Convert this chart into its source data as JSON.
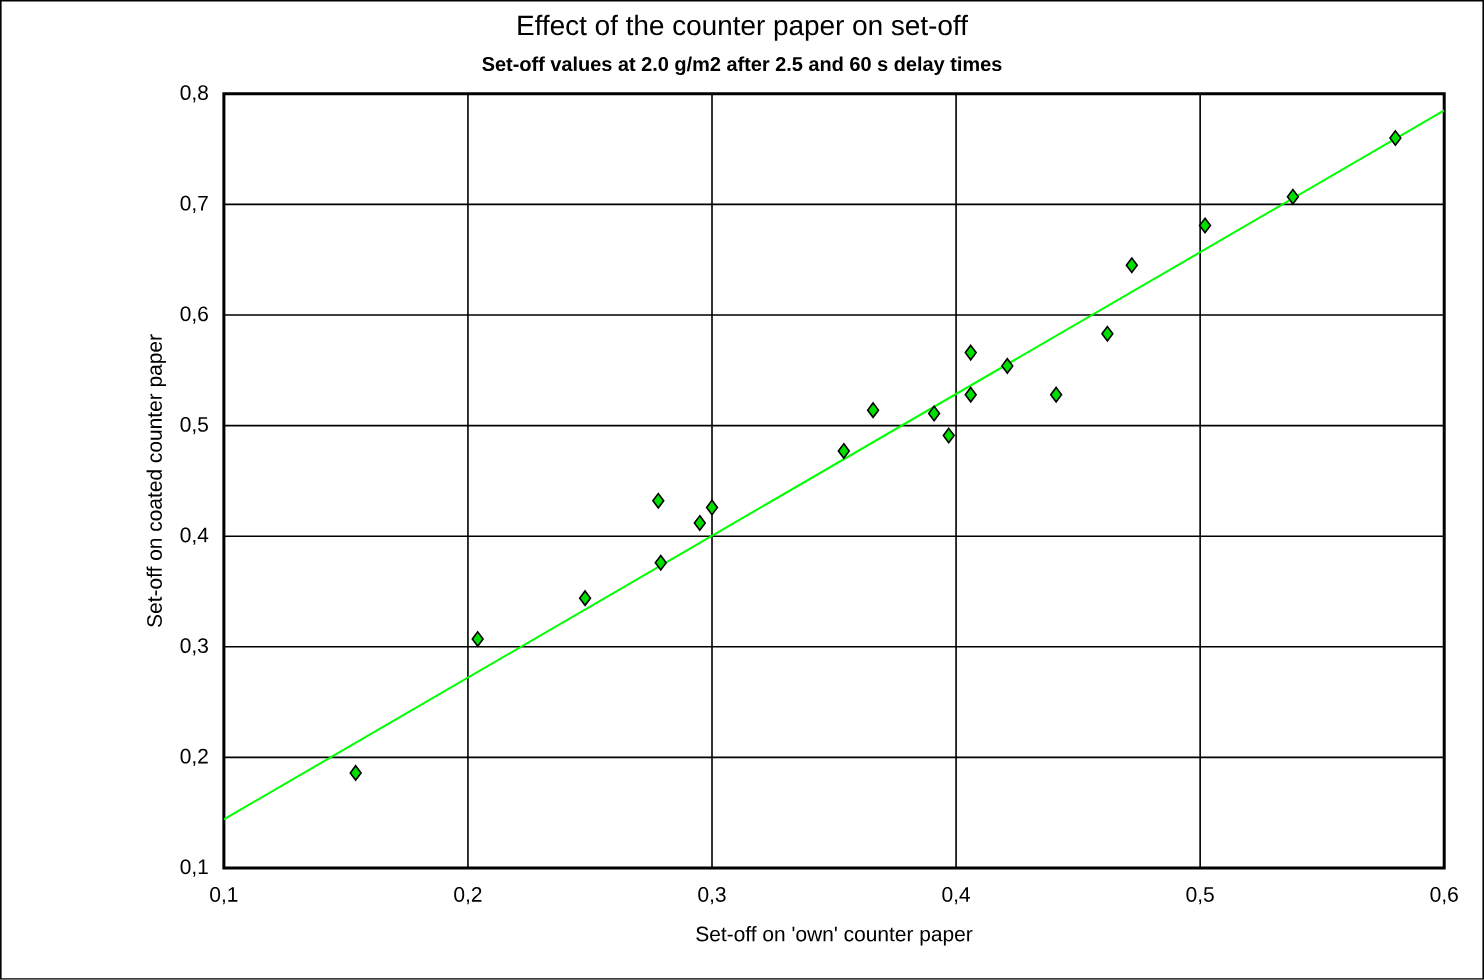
{
  "chart_data": {
    "type": "scatter",
    "title": "Effect of the counter paper on set-off",
    "subtitle": "Set-off values at 2.0 g/m2 after 2.5 and 60 s delay times",
    "xlabel": "Set-off on 'own' counter paper",
    "ylabel": "Set-off on coated counter paper",
    "xlim": [
      0.1,
      0.6
    ],
    "ylim": [
      0.1,
      0.8
    ],
    "xticks": [
      {
        "value": 0.1,
        "label": "0,1"
      },
      {
        "value": 0.2,
        "label": "0,2"
      },
      {
        "value": 0.3,
        "label": "0,3"
      },
      {
        "value": 0.4,
        "label": "0,4"
      },
      {
        "value": 0.5,
        "label": "0,5"
      },
      {
        "value": 0.6,
        "label": "0,6"
      }
    ],
    "yticks": [
      {
        "value": 0.1,
        "label": "0,1"
      },
      {
        "value": 0.2,
        "label": "0,2"
      },
      {
        "value": 0.3,
        "label": "0,3"
      },
      {
        "value": 0.4,
        "label": "0,4"
      },
      {
        "value": 0.5,
        "label": "0,5"
      },
      {
        "value": 0.6,
        "label": "0,6"
      },
      {
        "value": 0.7,
        "label": "0,7"
      },
      {
        "value": 0.8,
        "label": "0,8"
      }
    ],
    "grid": true,
    "series": [
      {
        "marker": "diamond",
        "color": "#00e000",
        "x": [
          0.154,
          0.204,
          0.248,
          0.278,
          0.279,
          0.295,
          0.3,
          0.354,
          0.366,
          0.391,
          0.397,
          0.406,
          0.406,
          0.421,
          0.441,
          0.462,
          0.472,
          0.502,
          0.538,
          0.58
        ],
        "values": [
          0.186,
          0.307,
          0.344,
          0.432,
          0.376,
          0.412,
          0.426,
          0.477,
          0.514,
          0.511,
          0.491,
          0.566,
          0.528,
          0.554,
          0.528,
          0.583,
          0.645,
          0.681,
          0.707,
          0.76
        ]
      },
      {
        "type": "line",
        "marker": "none",
        "color": "#00ff00",
        "x": [
          0.1,
          0.6
        ],
        "values": [
          0.144,
          0.785
        ]
      }
    ]
  }
}
